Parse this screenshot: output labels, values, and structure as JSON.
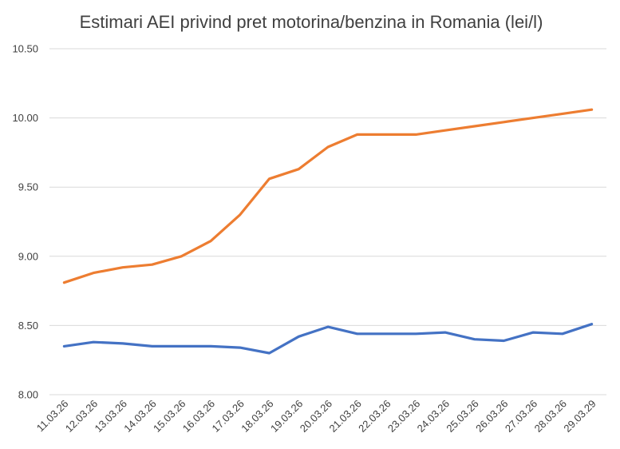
{
  "chart_data": {
    "type": "line",
    "title": "Estimari AEI privind pret motorina/benzina in Romania (lei/l)",
    "xlabel": "",
    "ylabel": "",
    "categories": [
      "11.03.26",
      "12.03.26",
      "13.03.26",
      "14.03.26",
      "15.03.26",
      "16.03.26",
      "17.03.26",
      "18.03.26",
      "19.03.26",
      "20.03.26",
      "21.03.26",
      "22.03.26",
      "23.03.26",
      "24.03.26",
      "25.03.26",
      "26.03.26",
      "27.03.26",
      "28.03.26",
      "29.03.29"
    ],
    "y_ticks": [
      "8.00",
      "8.50",
      "9.00",
      "9.50",
      "10.00",
      "10.50"
    ],
    "ylim": [
      8.0,
      10.5
    ],
    "grid": true,
    "legend": "none",
    "series": [
      {
        "color": "#ED7D31",
        "values": [
          8.81,
          8.88,
          8.92,
          8.94,
          9.0,
          9.11,
          9.3,
          9.56,
          9.63,
          9.79,
          9.88,
          9.88,
          9.88,
          9.91,
          9.94,
          9.97,
          10.0,
          10.03,
          10.06
        ]
      },
      {
        "color": "#4472C4",
        "values": [
          8.35,
          8.38,
          8.37,
          8.35,
          8.35,
          8.35,
          8.34,
          8.3,
          8.42,
          8.49,
          8.44,
          8.44,
          8.44,
          8.45,
          8.4,
          8.39,
          8.45,
          8.44,
          8.51
        ]
      }
    ]
  }
}
